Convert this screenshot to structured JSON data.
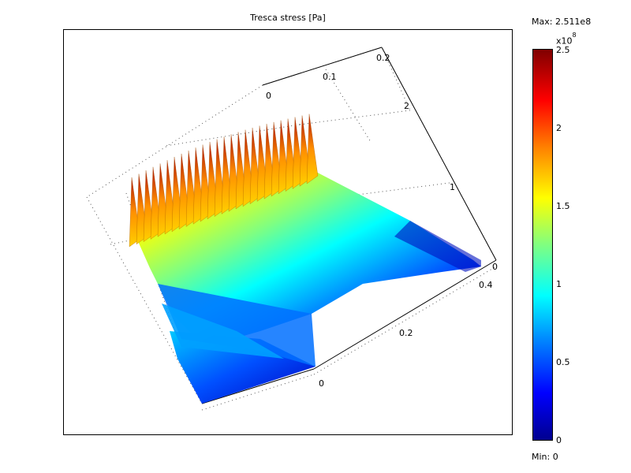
{
  "chart_data": {
    "type": "surface",
    "title": "Tresca stress [Pa]",
    "x_ticks": [
      "0",
      "0.2",
      "0.4"
    ],
    "y_ticks": [
      "0",
      "0.1",
      "0.2"
    ],
    "z_ticks": [
      "0",
      "1",
      "2"
    ],
    "colorbar": {
      "max_label": "Max: 2.511e8",
      "min_label": "Min: 0",
      "exponent_base": "x10",
      "exponent_power": "8",
      "ticks": [
        "0",
        "0.5",
        "1",
        "1.5",
        "2",
        "2.5"
      ],
      "tick_values": [
        0,
        0.5,
        1,
        1.5,
        2,
        2.5
      ],
      "range": [
        0,
        2.511
      ],
      "colormap": "jet"
    }
  }
}
